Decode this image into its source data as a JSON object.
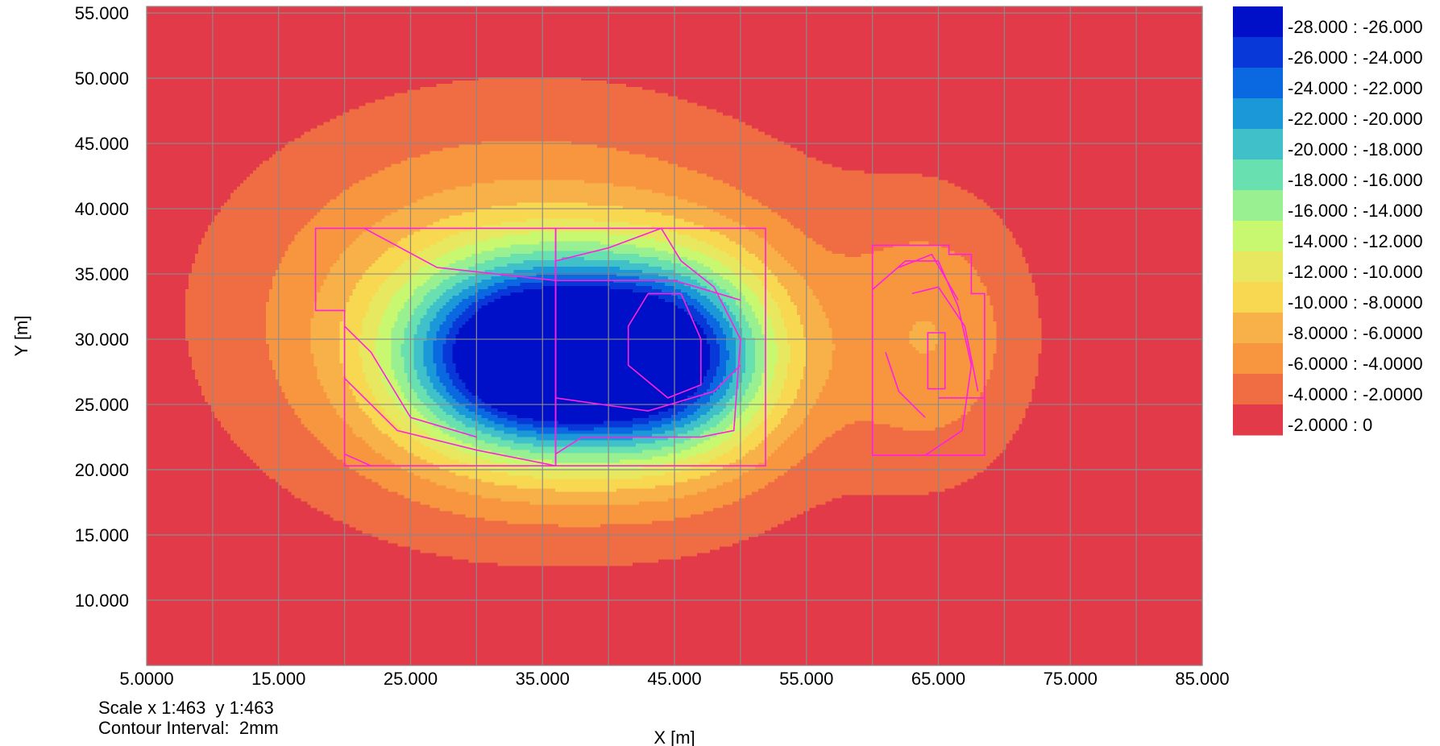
{
  "chart_data": {
    "type": "contour",
    "xlabel": "X [m]",
    "ylabel": "Y [m]",
    "xlim": [
      5.0,
      85.0
    ],
    "ylim": [
      5.0,
      55.5
    ],
    "x_ticks": [
      "5.0000",
      "15.000",
      "25.000",
      "35.000",
      "45.000",
      "55.000",
      "65.000",
      "75.000",
      "85.000"
    ],
    "y_ticks": [
      "10.000",
      "15.000",
      "20.000",
      "25.000",
      "30.000",
      "35.000",
      "40.000",
      "45.000",
      "50.000",
      "55.000"
    ],
    "grid": true,
    "legend_position": "right",
    "units": "mm",
    "levels": [
      {
        "label": "-28.000 : -26.000",
        "min": -28,
        "max": -26,
        "color": "#0010c8"
      },
      {
        "label": "-26.000 : -24.000",
        "min": -26,
        "max": -24,
        "color": "#0838d8"
      },
      {
        "label": "-24.000 : -22.000",
        "min": -24,
        "max": -22,
        "color": "#0a68e0"
      },
      {
        "label": "-22.000 : -20.000",
        "min": -22,
        "max": -20,
        "color": "#1a98d8"
      },
      {
        "label": "-20.000 : -18.000",
        "min": -20,
        "max": -18,
        "color": "#40c0c8"
      },
      {
        "label": "-18.000 : -16.000",
        "min": -18,
        "max": -16,
        "color": "#68e0b0"
      },
      {
        "label": "-16.000 : -14.000",
        "min": -16,
        "max": -14,
        "color": "#98f090"
      },
      {
        "label": "-14.000 : -12.000",
        "min": -14,
        "max": -12,
        "color": "#c8f870"
      },
      {
        "label": "-12.000 : -10.000",
        "min": -12,
        "max": -10,
        "color": "#e8e860"
      },
      {
        "label": "-10.000 : -8.0000",
        "min": -10,
        "max": -8,
        "color": "#f8d850"
      },
      {
        "label": "-8.0000 : -6.0000",
        "min": -8,
        "max": -6,
        "color": "#f8b048"
      },
      {
        "label": "-6.0000 : -4.0000",
        "min": -6,
        "max": -4,
        "color": "#f89640"
      },
      {
        "label": "-4.0000 : -2.0000",
        "min": -4,
        "max": -2,
        "color": "#f06c42"
      },
      {
        "label": "-2.0000 : 0",
        "min": -2,
        "max": 0,
        "color": "#e23a48"
      }
    ],
    "minimum_settlement": -28,
    "structure_color": "#ff20e0"
  },
  "footer": {
    "scale": "Scale x 1:463  y 1:463",
    "interval": "Contour Interval:  2mm"
  }
}
